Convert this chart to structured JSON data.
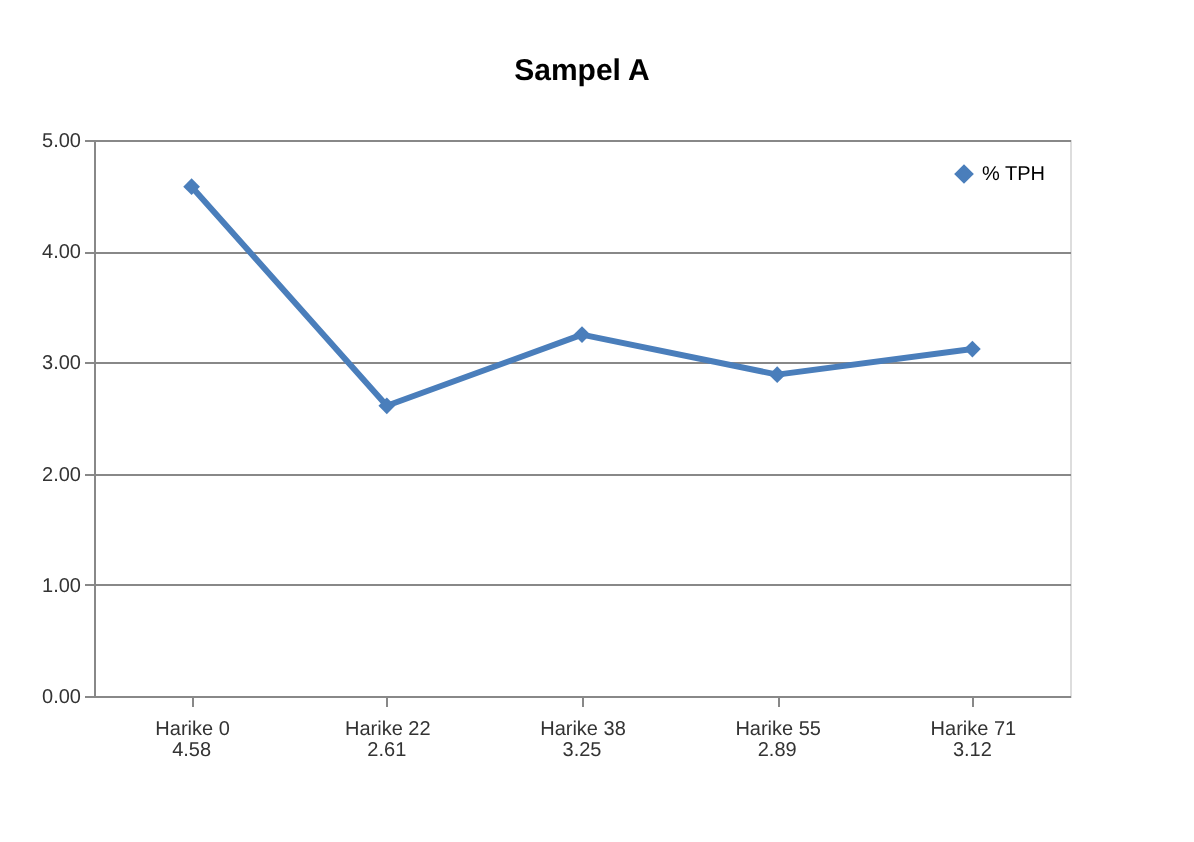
{
  "chart_data": {
    "type": "line",
    "title": "Sampel  A",
    "categories": [
      "Harike 0",
      "Harike 22",
      "Harike 38",
      "Harike 55",
      "Harike 71"
    ],
    "series": [
      {
        "name": "% TPH",
        "color": "#4a7ebb",
        "values": [
          4.58,
          2.61,
          3.25,
          2.89,
          3.12
        ]
      }
    ],
    "data_labels": true,
    "ylim": [
      0,
      5
    ],
    "yticks": [
      {
        "value": 0,
        "label": "0.00"
      },
      {
        "value": 1,
        "label": "1.00"
      },
      {
        "value": 2,
        "label": "2.00"
      },
      {
        "value": 3,
        "label": "3.00"
      },
      {
        "value": 4,
        "label": "4.00"
      },
      {
        "value": 5,
        "label": "5.00"
      }
    ],
    "grid": "y",
    "legend": "top right",
    "marker": "diamond",
    "line_style": "solid"
  }
}
